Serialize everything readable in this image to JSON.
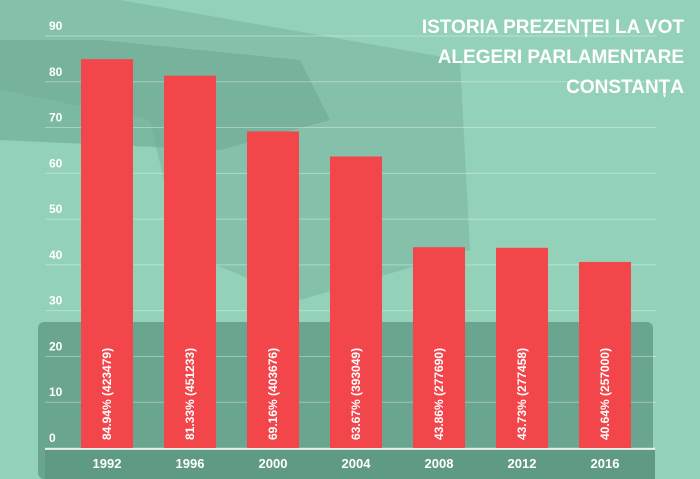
{
  "chart_data": {
    "type": "bar",
    "title": [
      "ISTORIA PREZENȚEI LA VOT",
      "ALEGERI PARLAMENTARE",
      "CONSTANȚA"
    ],
    "categories": [
      "1992",
      "1996",
      "2000",
      "2004",
      "2008",
      "2012",
      "2016"
    ],
    "values": [
      84.94,
      81.33,
      69.16,
      63.67,
      43.86,
      43.73,
      40.64
    ],
    "value_labels": [
      "84.94% (423479)",
      "81.33% (451233)",
      "69.16% (403676)",
      "63.67% (393049)",
      "43.86% (277690)",
      "43.73% (277458)",
      "40.64% (257000)"
    ],
    "color": "#f2464b",
    "ylim": [
      0,
      90
    ],
    "yticks": [
      0,
      10,
      20,
      30,
      40,
      50,
      60,
      70,
      80,
      90
    ],
    "grid": true
  }
}
